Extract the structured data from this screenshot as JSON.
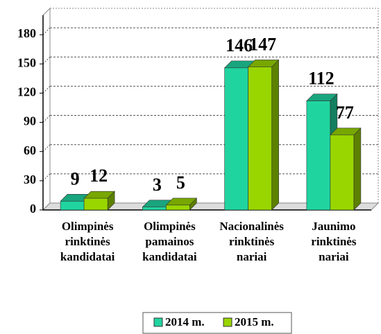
{
  "chart_data": {
    "type": "bar3d",
    "categories": [
      [
        "Olimpinės",
        "rinktinės",
        "kandidatai"
      ],
      [
        "Olimpinės",
        "pamainos",
        "kandidatai"
      ],
      [
        "Nacionalinės",
        "rinktinės",
        "nariai"
      ],
      [
        "Jaunimo",
        "rinktinės",
        "nariai"
      ]
    ],
    "series": [
      {
        "name": "2014 m.",
        "color": "#20d4a0",
        "values": [
          9,
          3,
          146,
          112
        ]
      },
      {
        "name": "2015 m.",
        "color": "#99d600",
        "values": [
          12,
          5,
          147,
          77
        ]
      }
    ],
    "ylim": [
      0,
      200
    ],
    "yticks": [
      0,
      30,
      60,
      90,
      120,
      150,
      180
    ],
    "grid": true,
    "legend": "bottom"
  }
}
